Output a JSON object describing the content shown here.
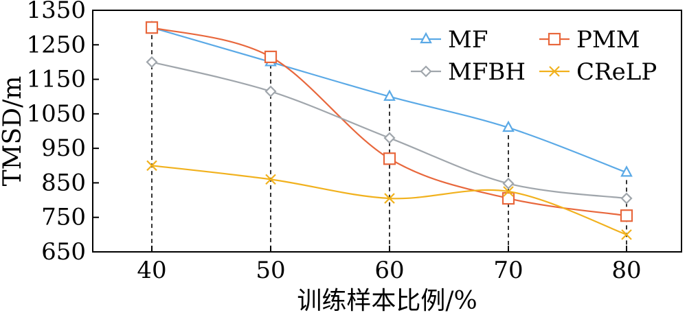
{
  "chart_data": {
    "type": "line",
    "title": "",
    "xlabel": "训练样本比例/%",
    "ylabel": "TMSD/m",
    "x": [
      40,
      50,
      60,
      70,
      80
    ],
    "x_ticks": [
      "40",
      "50",
      "60",
      "70",
      "80"
    ],
    "y_ticks": [
      "650",
      "750",
      "850",
      "950",
      "1050",
      "1150",
      "1250",
      "1350"
    ],
    "ylim": [
      650,
      1350
    ],
    "grid": false,
    "legend_position": "top-right",
    "series": [
      {
        "name": "MF",
        "color": "#5aa9e6",
        "marker": "triangle",
        "values": [
          1300,
          1200,
          1100,
          1010,
          880
        ]
      },
      {
        "name": "PMM",
        "color": "#e8673c",
        "marker": "square",
        "values": [
          1300,
          1215,
          920,
          805,
          755
        ]
      },
      {
        "name": "MFBH",
        "color": "#a0a6ac",
        "marker": "diamond",
        "values": [
          1200,
          1115,
          980,
          848,
          805
        ]
      },
      {
        "name": "CReLP",
        "color": "#f1b11d",
        "marker": "x",
        "values": [
          900,
          860,
          805,
          825,
          700
        ]
      }
    ],
    "annotations": "vertical dashed reference lines at each x tick"
  }
}
